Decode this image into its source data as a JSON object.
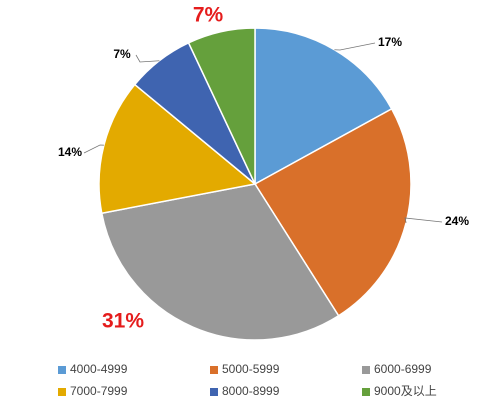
{
  "chart_data": {
    "type": "pie",
    "categories": [
      "4000-4999",
      "5000-5999",
      "6000-6999",
      "7000-7999",
      "8000-8999",
      "9000及以上"
    ],
    "values": [
      17,
      24,
      31,
      14,
      7,
      7
    ],
    "value_labels": [
      "17%",
      "24%",
      "31%",
      "14%",
      "7%",
      "7%"
    ],
    "colors": [
      "#5b9bd5",
      "#d9702a",
      "#999999",
      "#e3aa00",
      "#3f64b0",
      "#65a03c"
    ],
    "label_colors": [
      "#000000",
      "#000000",
      "#e51c1c",
      "#000000",
      "#000000",
      "#e51c1c"
    ],
    "legend": "bottom"
  }
}
